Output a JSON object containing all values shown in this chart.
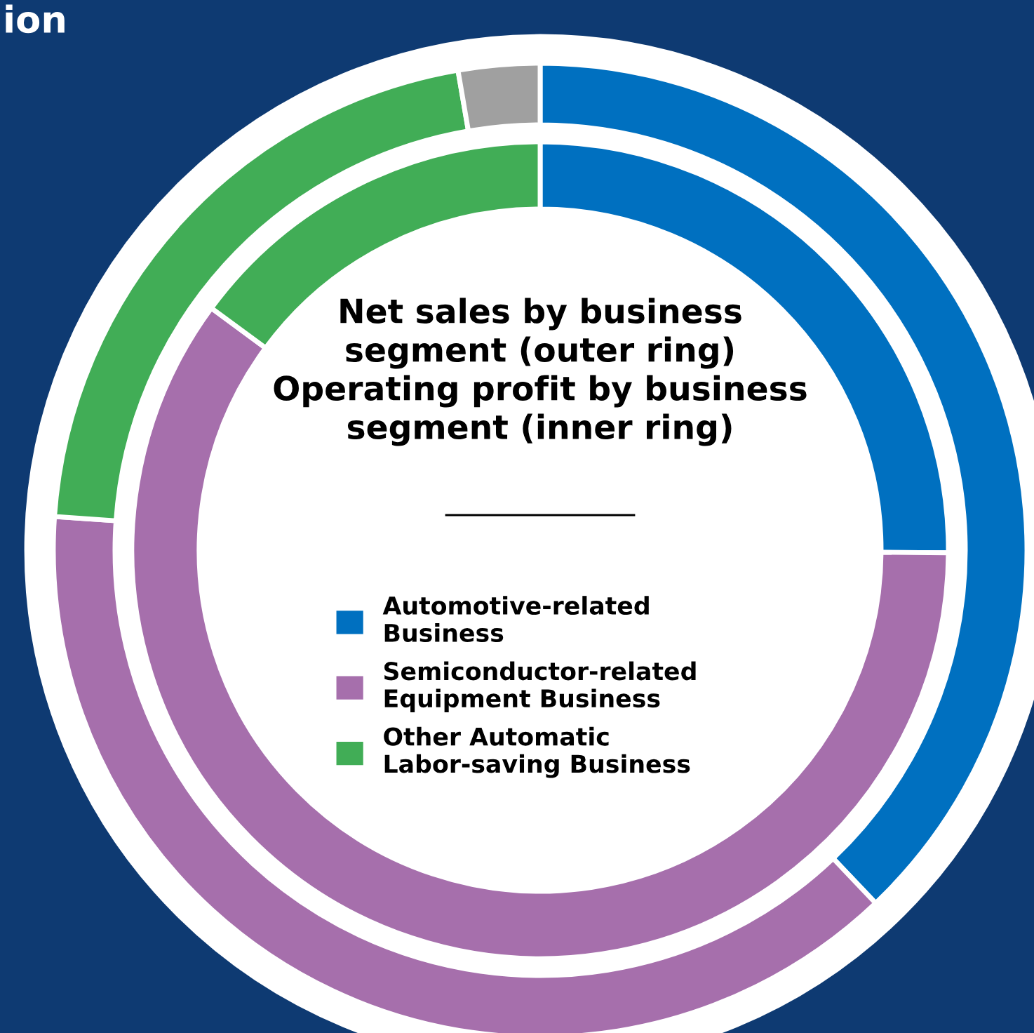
{
  "chart_data": {
    "type": "donut",
    "title": "Net sales by business\nsegment (outer ring)\nOperating profit by business\nsegment (inner ring)",
    "annotations": [
      "ion"
    ],
    "categories": [
      "Automotive-related\nBusiness",
      "Semiconductor-related\nEquipment Business",
      "Other Automatic\nLabor-saving Business",
      null
    ],
    "colors": [
      "#0070c0",
      "#a66fac",
      "#41ad56",
      "#a0a0a0"
    ],
    "series": [
      {
        "values": [
          37.9,
          38.2,
          21.2,
          2.7
        ]
      },
      {
        "values": [
          25.1,
          60.0,
          14.9,
          null
        ]
      }
    ],
    "legend": "center"
  }
}
